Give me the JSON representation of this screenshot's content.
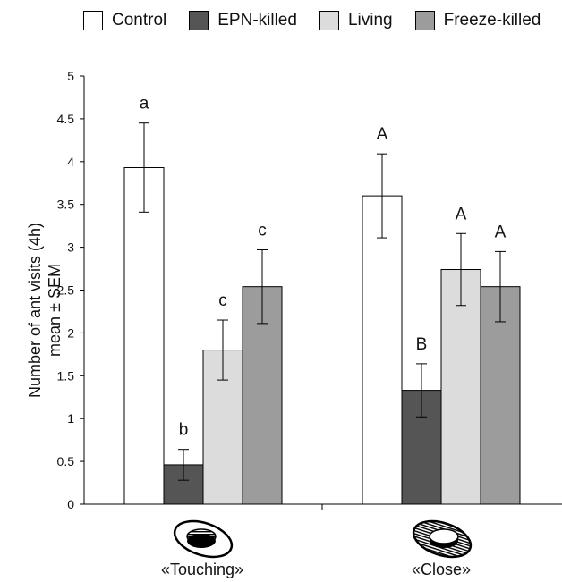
{
  "chart_data": {
    "type": "bar",
    "ylabel_lines": [
      "Number of ant visits (4h)",
      "mean ± SEM"
    ],
    "ylim": [
      0,
      5
    ],
    "yticks": [
      "0",
      "0.5",
      "1",
      "1.5",
      "2",
      "2.5",
      "3",
      "3.5",
      "4",
      "4.5",
      "5"
    ],
    "ytick_values": [
      0,
      0.5,
      1,
      1.5,
      2,
      2.5,
      3,
      3.5,
      4,
      4.5,
      5
    ],
    "categories": [
      "«Touching»",
      "«Close»"
    ],
    "legend_position": "top",
    "grid": false,
    "series": [
      {
        "name": "Control",
        "color": "#ffffff",
        "values": [
          3.93,
          3.6
        ],
        "errors": [
          0.52,
          0.49
        ],
        "letters": [
          "a",
          "A"
        ]
      },
      {
        "name": "EPN-killed",
        "color": "#555555",
        "values": [
          0.46,
          1.33
        ],
        "errors": [
          0.18,
          0.31
        ],
        "letters": [
          "b",
          "B"
        ]
      },
      {
        "name": "Living",
        "color": "#dcdcdc",
        "values": [
          1.8,
          2.74
        ],
        "errors": [
          0.35,
          0.42
        ],
        "letters": [
          "c",
          "A"
        ]
      },
      {
        "name": "Freeze-killed",
        "color": "#9c9c9c",
        "values": [
          2.54,
          2.54
        ],
        "errors": [
          0.43,
          0.41
        ],
        "letters": [
          "c",
          "A"
        ]
      }
    ]
  }
}
